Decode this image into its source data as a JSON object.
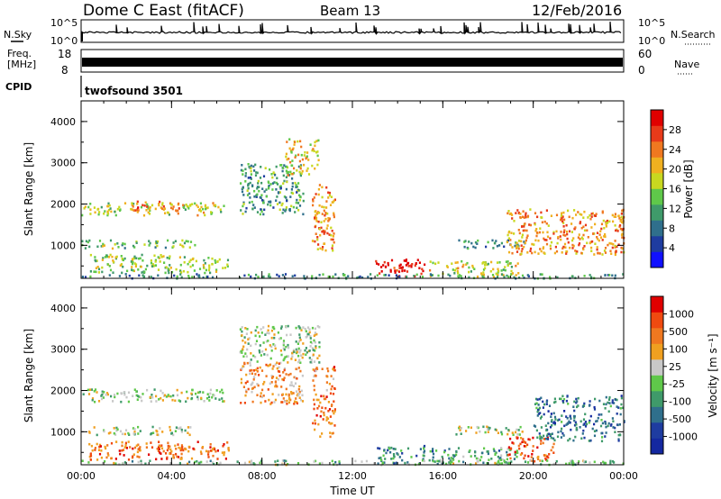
{
  "header": {
    "station": "Dome C East (fitACF)",
    "beam": "Beam 13",
    "date": "12/Feb/2016"
  },
  "strips": {
    "nsky_label": "N.Sky",
    "nsky_ticks": [
      "10^5",
      "10^0"
    ],
    "nsearch_label": "N.Search",
    "nsearch_ticks": [
      "10^5",
      "10^0"
    ],
    "freq_label_1": "Freq.",
    "freq_label_2": "[MHz]",
    "freq_ticks": [
      "18",
      "8"
    ],
    "nave_label": "Nave",
    "nave_ticks": [
      "60",
      "0"
    ],
    "cpid_label": "CPID",
    "cpid_value": "twofsound 3501"
  },
  "chart_data": [
    {
      "type": "heatmap",
      "name": "power",
      "ylabel": "Slant Range [km]",
      "xlabel": "Time UT",
      "xlim": [
        0,
        24
      ],
      "ylim": [
        200,
        4500
      ],
      "x_tick_labels": [
        "00:00",
        "04:00",
        "08:00",
        "12:00",
        "16:00",
        "20:00",
        "00:00"
      ],
      "y_tick_labels": [
        "1000",
        "2000",
        "3000",
        "4000"
      ],
      "colorbar": {
        "label": "Power [dB]",
        "ticks": [
          "4",
          "8",
          "12",
          "16",
          "20",
          "24",
          "28"
        ],
        "colors": [
          "#1010ff",
          "#1e3ca0",
          "#2f6f8c",
          "#3f9a6a",
          "#5fc84a",
          "#c8d820",
          "#f0b020",
          "#f07820",
          "#e83a1a",
          "#e00000"
        ]
      },
      "regions": [
        {
          "t0": 0.0,
          "t1": 6.3,
          "r0": 1750,
          "r1": 2050,
          "level": 0.55
        },
        {
          "t0": 2.2,
          "t1": 4.3,
          "r0": 1850,
          "r1": 2100,
          "level": 0.75
        },
        {
          "t0": 0.0,
          "t1": 5.0,
          "r0": 950,
          "r1": 1150,
          "level": 0.45
        },
        {
          "t0": 0.3,
          "t1": 6.5,
          "r0": 350,
          "r1": 800,
          "level": 0.5
        },
        {
          "t0": 7.0,
          "t1": 9.8,
          "r0": 1700,
          "r1": 3000,
          "level": 0.35
        },
        {
          "t0": 9.0,
          "t1": 10.5,
          "r0": 2700,
          "r1": 3600,
          "level": 0.6
        },
        {
          "t0": 10.2,
          "t1": 11.2,
          "r0": 900,
          "r1": 2600,
          "level": 0.7
        },
        {
          "t0": 13.0,
          "t1": 15.2,
          "r0": 250,
          "r1": 700,
          "level": 0.95
        },
        {
          "t0": 16.5,
          "t1": 19.7,
          "r0": 950,
          "r1": 1150,
          "level": 0.3
        },
        {
          "t0": 15.3,
          "t1": 19.3,
          "r0": 250,
          "r1": 650,
          "level": 0.55
        },
        {
          "t0": 18.8,
          "t1": 24.0,
          "r0": 800,
          "r1": 1900,
          "level": 0.7
        },
        {
          "t0": 0.0,
          "t1": 24.0,
          "r0": 220,
          "r1": 330,
          "level": 0.3
        }
      ]
    },
    {
      "type": "heatmap",
      "name": "velocity",
      "ylabel": "Slant Range [km]",
      "xlabel": "Time UT",
      "xlim": [
        0,
        24
      ],
      "ylim": [
        200,
        4500
      ],
      "x_tick_labels": [
        "00:00",
        "04:00",
        "08:00",
        "12:00",
        "16:00",
        "20:00",
        "00:00"
      ],
      "y_tick_labels": [
        "1000",
        "2000",
        "3000",
        "4000"
      ],
      "colorbar": {
        "label": "Velocity [m s⁻¹]",
        "ticks": [
          "1000",
          "500",
          "100",
          "25",
          "-25",
          "-100",
          "-500",
          "-1000"
        ],
        "colors": [
          "#1428a0",
          "#1e3ca0",
          "#2f6f8c",
          "#3f9a6a",
          "#5fc84a",
          "#c8c8c8",
          "#f0a020",
          "#f07820",
          "#f04a10",
          "#e00000"
        ]
      },
      "regions": [
        {
          "t0": 0.0,
          "t1": 6.3,
          "r0": 1750,
          "r1": 2050,
          "level": 0.5
        },
        {
          "t0": 0.0,
          "t1": 5.0,
          "r0": 950,
          "r1": 1150,
          "level": 0.5
        },
        {
          "t0": 0.3,
          "t1": 6.5,
          "r0": 350,
          "r1": 800,
          "level": 0.78
        },
        {
          "t0": 7.0,
          "t1": 10.5,
          "r0": 2700,
          "r1": 3600,
          "level": 0.5
        },
        {
          "t0": 7.0,
          "t1": 9.8,
          "r0": 1700,
          "r1": 2700,
          "level": 0.7
        },
        {
          "t0": 10.2,
          "t1": 11.2,
          "r0": 900,
          "r1": 2600,
          "level": 0.75
        },
        {
          "t0": 13.0,
          "t1": 15.2,
          "r0": 250,
          "r1": 700,
          "level": 0.3
        },
        {
          "t0": 15.3,
          "t1": 19.3,
          "r0": 250,
          "r1": 650,
          "level": 0.35
        },
        {
          "t0": 16.5,
          "t1": 19.7,
          "r0": 950,
          "r1": 1150,
          "level": 0.5
        },
        {
          "t0": 18.8,
          "t1": 21.0,
          "r0": 300,
          "r1": 900,
          "level": 0.8
        },
        {
          "t0": 20.0,
          "t1": 24.0,
          "r0": 800,
          "r1": 1900,
          "level": 0.25
        },
        {
          "t0": 0.0,
          "t1": 24.0,
          "r0": 220,
          "r1": 330,
          "level": 0.45
        }
      ]
    }
  ]
}
